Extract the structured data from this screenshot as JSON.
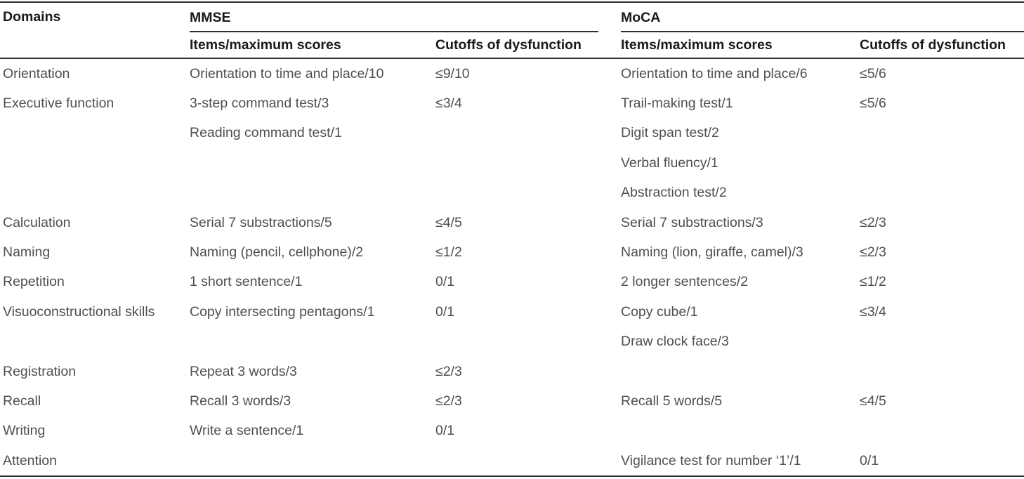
{
  "table": {
    "columns": {
      "domains_label": "Domains",
      "mmse_label": "MMSE",
      "moca_label": "MoCA",
      "items_label": "Items/maximum scores",
      "cutoffs_label": "Cutoffs of dysfunction"
    },
    "rows": [
      {
        "domain": "Orientation",
        "mmse_item": "Orientation to time and place/10",
        "mmse_cutoff": "≤9/10",
        "moca_item": "Orientation to time and place/6",
        "moca_cutoff": "≤5/6"
      },
      {
        "domain": "Executive function",
        "mmse_item": "3-step command test/3",
        "mmse_cutoff": "≤3/4",
        "moca_item": "Trail-making test/1",
        "moca_cutoff": "≤5/6"
      },
      {
        "domain": "",
        "mmse_item": "Reading command test/1",
        "mmse_cutoff": "",
        "moca_item": "Digit span test/2",
        "moca_cutoff": ""
      },
      {
        "domain": "",
        "mmse_item": "",
        "mmse_cutoff": "",
        "moca_item": "Verbal fluency/1",
        "moca_cutoff": ""
      },
      {
        "domain": "",
        "mmse_item": "",
        "mmse_cutoff": "",
        "moca_item": "Abstraction test/2",
        "moca_cutoff": ""
      },
      {
        "domain": "Calculation",
        "mmse_item": "Serial 7 substractions/5",
        "mmse_cutoff": "≤4/5",
        "moca_item": "Serial 7 substractions/3",
        "moca_cutoff": "≤2/3"
      },
      {
        "domain": "Naming",
        "mmse_item": "Naming (pencil, cellphone)/2",
        "mmse_cutoff": "≤1/2",
        "moca_item": "Naming (lion, giraffe, camel)/3",
        "moca_cutoff": "≤2/3"
      },
      {
        "domain": "Repetition",
        "mmse_item": "1 short sentence/1",
        "mmse_cutoff": "0/1",
        "moca_item": "2 longer sentences/2",
        "moca_cutoff": "≤1/2"
      },
      {
        "domain": "Visuoconstructional skills",
        "mmse_item": "Copy intersecting pentagons/1",
        "mmse_cutoff": "0/1",
        "moca_item": "Copy cube/1",
        "moca_cutoff": "≤3/4"
      },
      {
        "domain": "",
        "mmse_item": "",
        "mmse_cutoff": "",
        "moca_item": "Draw clock face/3",
        "moca_cutoff": ""
      },
      {
        "domain": "Registration",
        "mmse_item": "Repeat 3 words/3",
        "mmse_cutoff": "≤2/3",
        "moca_item": "",
        "moca_cutoff": ""
      },
      {
        "domain": "Recall",
        "mmse_item": "Recall 3 words/3",
        "mmse_cutoff": "≤2/3",
        "moca_item": "Recall 5 words/5",
        "moca_cutoff": "≤4/5"
      },
      {
        "domain": "Writing",
        "mmse_item": "Write a sentence/1",
        "mmse_cutoff": "0/1",
        "moca_item": "",
        "moca_cutoff": ""
      },
      {
        "domain": "Attention",
        "mmse_item": "",
        "mmse_cutoff": "",
        "moca_item": "Vigilance test for number ‘1’/1",
        "moca_cutoff": "0/1"
      }
    ]
  },
  "colors": {
    "rule": "#2e2e2e",
    "header_text": "#1a1a1a",
    "body_text": "#4f4f4f",
    "background": "#ffffff"
  }
}
